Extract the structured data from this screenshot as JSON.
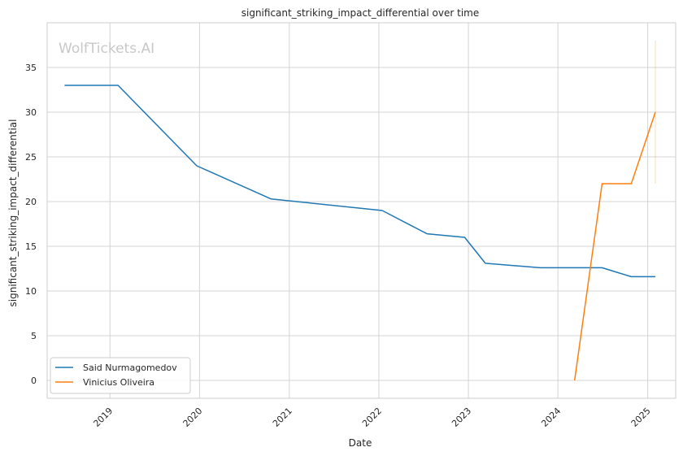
{
  "chart_data": {
    "type": "line",
    "title": "significant_striking_impact_differential over time",
    "xlabel": "Date",
    "ylabel": "significant_striking_impact_differential",
    "watermark": "WolfTickets.AI",
    "x_ticks": [
      "2019",
      "2020",
      "2021",
      "2022",
      "2023",
      "2024",
      "2025"
    ],
    "y_ticks": [
      0,
      5,
      10,
      15,
      20,
      25,
      30,
      35
    ],
    "xlim": [
      "2018-04-20",
      "2025-04-25"
    ],
    "ylim": [
      -2,
      40
    ],
    "grid": true,
    "legend_position": "lower-left",
    "series": [
      {
        "name": "Said Nurmagomedov",
        "color": "#1f77b4",
        "points": [
          [
            "2018-06-30",
            33.0
          ],
          [
            "2019-02-03",
            33.0
          ],
          [
            "2019-12-21",
            24.0
          ],
          [
            "2020-10-18",
            20.3
          ],
          [
            "2022-01-15",
            19.0
          ],
          [
            "2022-07-16",
            16.4
          ],
          [
            "2022-12-17",
            16.0
          ],
          [
            "2023-03-11",
            13.1
          ],
          [
            "2023-10-21",
            12.6
          ],
          [
            "2024-06-29",
            12.6
          ],
          [
            "2024-10-26",
            11.6
          ],
          [
            "2025-02-01",
            11.6
          ]
        ]
      },
      {
        "name": "Vinicius Oliveira",
        "color": "#ff7f0e",
        "points": [
          [
            "2024-03-09",
            0.0
          ],
          [
            "2024-06-29",
            22.0
          ],
          [
            "2024-10-26",
            22.0
          ],
          [
            "2025-02-01",
            30.0
          ]
        ],
        "error_bar": {
          "x": "2025-02-01",
          "low": 22.0,
          "high": 38.0
        }
      }
    ]
  }
}
